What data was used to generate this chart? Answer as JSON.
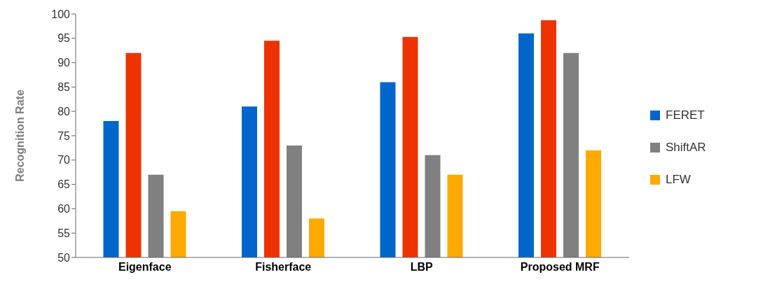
{
  "chart_data": {
    "type": "bar",
    "ylabel": "Recognition Rate",
    "categories": [
      "Eigenface",
      "Fisherface",
      "LBP",
      "Proposed MRF"
    ],
    "series": [
      {
        "name": "FERET",
        "color": "#0066cc",
        "values": [
          78,
          81,
          86,
          96
        ]
      },
      {
        "color": "#ee3300",
        "values": [
          92,
          94.5,
          95.3,
          98.7
        ]
      },
      {
        "name": "ShiftAR",
        "color": "#808080",
        "values": [
          67,
          73,
          71,
          92
        ]
      },
      {
        "name": "LFW",
        "color": "#ffaa00",
        "values": [
          59.5,
          58,
          67,
          72
        ]
      }
    ],
    "ylim": [
      50,
      100
    ],
    "yticks": [
      50,
      55,
      60,
      65,
      70,
      75,
      80,
      85,
      90,
      95,
      100
    ],
    "grid": false,
    "legend": "right"
  }
}
